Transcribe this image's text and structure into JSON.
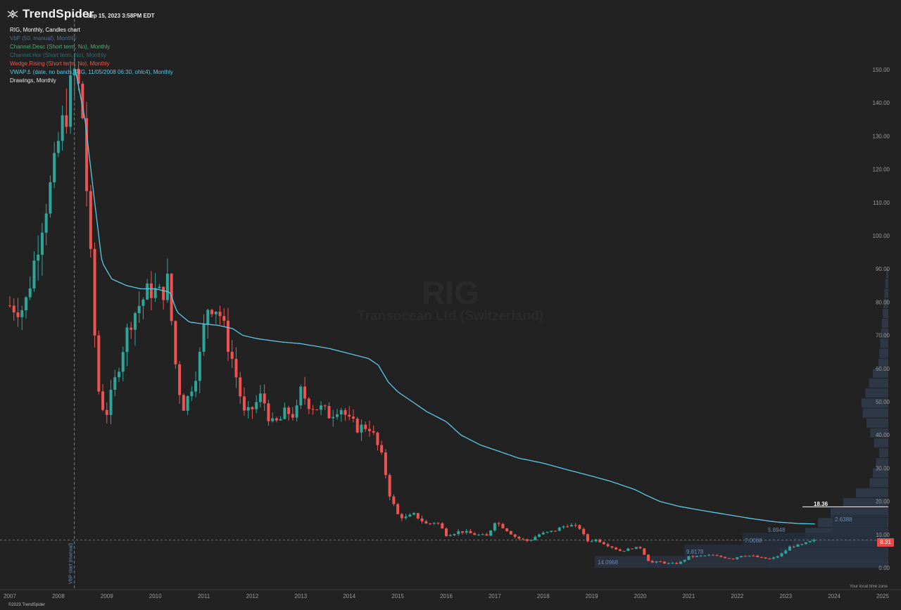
{
  "app": {
    "brand": "TrendSpider",
    "timestamp": "Sep 15, 2023 3:58PM EDT",
    "copyright": "©2023 TrendSpider",
    "timezone_label": "Your local time zone"
  },
  "legend": [
    "RIG, Monthly, Candles chart",
    "VbP (50, manual), Monthly",
    "Channel.Desc (Short term, No), Monthly",
    "Channel.Hor (Short term, No), Monthly",
    "Wedge.Rising (Short term, No), Monthly",
    "VWAP⚓ (date, no bands, RIG, 11/05/2008 06:30, ohlc4), Monthly",
    "Drawings, Monthly"
  ],
  "watermark": {
    "ticker": "RIG",
    "name": "Transocean Ltd (Switzerland)"
  },
  "colors": {
    "background": "#222222",
    "up_candle": "#2fa59a",
    "down_candle": "#ef5350",
    "vwap_line": "#5bc8e8",
    "vbp_bars": "#2f3a4a",
    "axis_text": "#9a9a9a",
    "last_price": "#e84a4a"
  },
  "price_axis": {
    "labels": [
      "150.00",
      "140.00",
      "130.00",
      "120.00",
      "110.00",
      "100.00",
      "90.00",
      "80.00",
      "70.00",
      "60.00",
      "50.00",
      "40.00",
      "30.00",
      "20.00",
      "10.00",
      "0.00"
    ],
    "last_price": "8.31",
    "horizontal_level": "18.36"
  },
  "vbp_levels": [
    "2.6388",
    "5.8948",
    "7.0008",
    "9.8178",
    "14.0968"
  ],
  "vbp_start_label": "VbP start (manual)",
  "chart_data": {
    "type": "candlestick",
    "ticker": "RIG",
    "interval": "Monthly",
    "ylim": [
      0,
      155
    ],
    "x_labels": [
      "2007",
      "2008",
      "2009",
      "2010",
      "2011",
      "2012",
      "2013",
      "2014",
      "2015",
      "2016",
      "2017",
      "2018",
      "2019",
      "2020",
      "2021",
      "2022",
      "2023",
      "2024",
      "2025"
    ],
    "price_path": [
      [
        2007.0,
        79
      ],
      [
        2007.3,
        78
      ],
      [
        2007.5,
        92
      ],
      [
        2007.7,
        107
      ],
      [
        2007.9,
        118
      ],
      [
        2008.0,
        128
      ],
      [
        2008.2,
        140
      ],
      [
        2008.35,
        150
      ],
      [
        2008.5,
        136
      ],
      [
        2008.6,
        110
      ],
      [
        2008.75,
        70
      ],
      [
        2008.85,
        50
      ],
      [
        2009.0,
        47
      ],
      [
        2009.15,
        55
      ],
      [
        2009.3,
        65
      ],
      [
        2009.5,
        75
      ],
      [
        2009.7,
        80
      ],
      [
        2009.9,
        84
      ],
      [
        2010.1,
        82
      ],
      [
        2010.25,
        86
      ],
      [
        2010.35,
        72
      ],
      [
        2010.45,
        56
      ],
      [
        2010.6,
        48
      ],
      [
        2010.75,
        55
      ],
      [
        2010.9,
        62
      ],
      [
        2011.0,
        72
      ],
      [
        2011.1,
        80
      ],
      [
        2011.3,
        78
      ],
      [
        2011.45,
        70
      ],
      [
        2011.6,
        62
      ],
      [
        2011.75,
        52
      ],
      [
        2011.85,
        45
      ],
      [
        2012.0,
        48
      ],
      [
        2012.2,
        52
      ],
      [
        2012.4,
        43
      ],
      [
        2012.55,
        44
      ],
      [
        2012.7,
        47
      ],
      [
        2012.9,
        46
      ],
      [
        2013.0,
        53
      ],
      [
        2013.2,
        49
      ],
      [
        2013.4,
        48
      ],
      [
        2013.6,
        46
      ],
      [
        2013.8,
        49
      ],
      [
        2014.0,
        44
      ],
      [
        2014.2,
        42
      ],
      [
        2014.4,
        43
      ],
      [
        2014.55,
        38
      ],
      [
        2014.7,
        32
      ],
      [
        2014.85,
        21
      ],
      [
        2015.0,
        16
      ],
      [
        2015.15,
        15
      ],
      [
        2015.35,
        16
      ],
      [
        2015.6,
        13
      ],
      [
        2015.8,
        14
      ],
      [
        2016.0,
        10
      ],
      [
        2016.3,
        11
      ],
      [
        2016.6,
        10
      ],
      [
        2016.85,
        9.5
      ],
      [
        2017.0,
        14
      ],
      [
        2017.2,
        12
      ],
      [
        2017.45,
        9
      ],
      [
        2017.7,
        8
      ],
      [
        2017.9,
        10
      ],
      [
        2018.2,
        11
      ],
      [
        2018.5,
        13
      ],
      [
        2018.75,
        12
      ],
      [
        2018.9,
        8
      ],
      [
        2019.1,
        8.5
      ],
      [
        2019.3,
        7
      ],
      [
        2019.6,
        5
      ],
      [
        2019.85,
        6
      ],
      [
        2020.0,
        6
      ],
      [
        2020.2,
        1.5
      ],
      [
        2020.4,
        1.8
      ],
      [
        2020.6,
        1.2
      ],
      [
        2020.8,
        1.4
      ],
      [
        2021.0,
        3.3
      ],
      [
        2021.2,
        3.5
      ],
      [
        2021.45,
        3.8
      ],
      [
        2021.7,
        3.2
      ],
      [
        2021.9,
        2.7
      ],
      [
        2022.1,
        3.8
      ],
      [
        2022.3,
        3.6
      ],
      [
        2022.5,
        2.9
      ],
      [
        2022.7,
        2.6
      ],
      [
        2022.9,
        4.0
      ],
      [
        2023.1,
        6.5
      ],
      [
        2023.3,
        6.8
      ],
      [
        2023.5,
        7.8
      ],
      [
        2023.62,
        8.3
      ]
    ],
    "vwap_anchor": "11/05/2008 06:30",
    "vwap_path": [
      [
        2008.35,
        150
      ],
      [
        2008.55,
        135
      ],
      [
        2008.75,
        110
      ],
      [
        2008.9,
        92
      ],
      [
        2009.1,
        87
      ],
      [
        2009.4,
        85
      ],
      [
        2009.7,
        84
      ],
      [
        2010.0,
        84
      ],
      [
        2010.3,
        83
      ],
      [
        2010.45,
        77
      ],
      [
        2010.7,
        74
      ],
      [
        2010.95,
        73.5
      ],
      [
        2011.3,
        73
      ],
      [
        2011.6,
        72
      ],
      [
        2011.8,
        70
      ],
      [
        2012.1,
        69
      ],
      [
        2012.6,
        68
      ],
      [
        2013.0,
        67.5
      ],
      [
        2013.6,
        66
      ],
      [
        2014.0,
        64.5
      ],
      [
        2014.4,
        63
      ],
      [
        2014.6,
        61
      ],
      [
        2014.8,
        56
      ],
      [
        2015.0,
        53
      ],
      [
        2015.3,
        50
      ],
      [
        2015.6,
        47
      ],
      [
        2016.0,
        44
      ],
      [
        2016.3,
        40
      ],
      [
        2016.7,
        37
      ],
      [
        2017.0,
        35.5
      ],
      [
        2017.5,
        33
      ],
      [
        2018.0,
        31.5
      ],
      [
        2018.5,
        29.5
      ],
      [
        2018.9,
        28
      ],
      [
        2019.4,
        26
      ],
      [
        2019.9,
        23.5
      ],
      [
        2020.1,
        22
      ],
      [
        2020.4,
        20
      ],
      [
        2020.8,
        18.5
      ],
      [
        2021.3,
        17.2
      ],
      [
        2021.8,
        16
      ],
      [
        2022.3,
        14.8
      ],
      [
        2022.8,
        13.8
      ],
      [
        2023.3,
        13.3
      ],
      [
        2023.62,
        13.2
      ]
    ]
  }
}
